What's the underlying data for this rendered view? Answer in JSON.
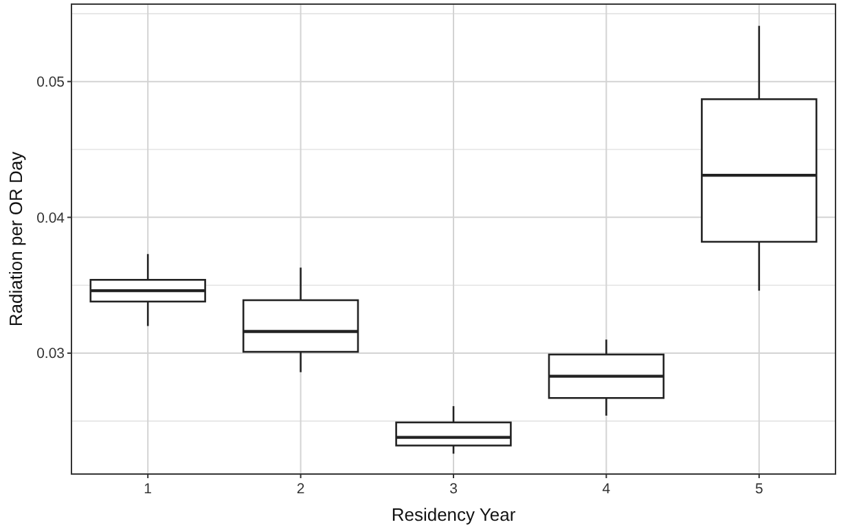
{
  "chart_data": {
    "type": "box",
    "xlabel": "Residency Year",
    "ylabel": "Radiation per OR Day",
    "categories": [
      "1",
      "2",
      "3",
      "4",
      "5"
    ],
    "boxes": [
      {
        "low": 0.032,
        "q1": 0.0338,
        "median": 0.0346,
        "q3": 0.0354,
        "high": 0.0373
      },
      {
        "low": 0.0286,
        "q1": 0.0301,
        "median": 0.0316,
        "q3": 0.0339,
        "high": 0.0363
      },
      {
        "low": 0.0226,
        "q1": 0.0232,
        "median": 0.0238,
        "q3": 0.0249,
        "high": 0.0261
      },
      {
        "low": 0.0254,
        "q1": 0.0267,
        "median": 0.0283,
        "q3": 0.0299,
        "high": 0.031
      },
      {
        "low": 0.0346,
        "q1": 0.0382,
        "median": 0.0431,
        "q3": 0.0487,
        "high": 0.0541
      }
    ],
    "ylim": [
      0.0211,
      0.0557
    ],
    "yticks": [
      {
        "value": 0.025,
        "label": null
      },
      {
        "value": 0.03,
        "label": "0.03"
      },
      {
        "value": 0.035,
        "label": null
      },
      {
        "value": 0.04,
        "label": "0.04"
      },
      {
        "value": 0.045,
        "label": null
      },
      {
        "value": 0.05,
        "label": "0.05"
      },
      {
        "value": 0.055,
        "label": null
      }
    ],
    "grid": true
  }
}
